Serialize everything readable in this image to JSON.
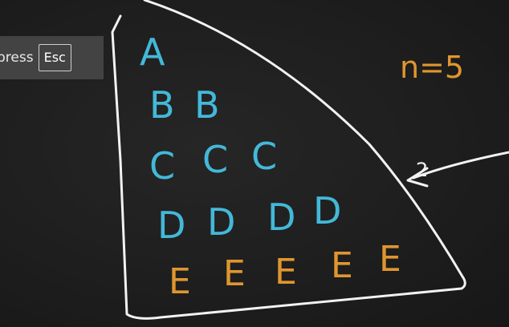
{
  "overlay": {
    "text": "press",
    "key_label": "Esc"
  },
  "board": {
    "annotation": "n=5",
    "arrow_label": "2",
    "colors": {
      "chalk_white": "#f2f2f2",
      "blue": "#43b8d8",
      "orange": "#e0962e"
    },
    "rows": [
      {
        "letters": [
          "A"
        ]
      },
      {
        "letters": [
          "B",
          "B"
        ]
      },
      {
        "letters": [
          "C",
          "C",
          "C"
        ]
      },
      {
        "letters": [
          "D",
          "D",
          "D",
          "D"
        ]
      },
      {
        "letters": [
          "E",
          "E",
          "E",
          "E",
          "E"
        ]
      }
    ]
  }
}
